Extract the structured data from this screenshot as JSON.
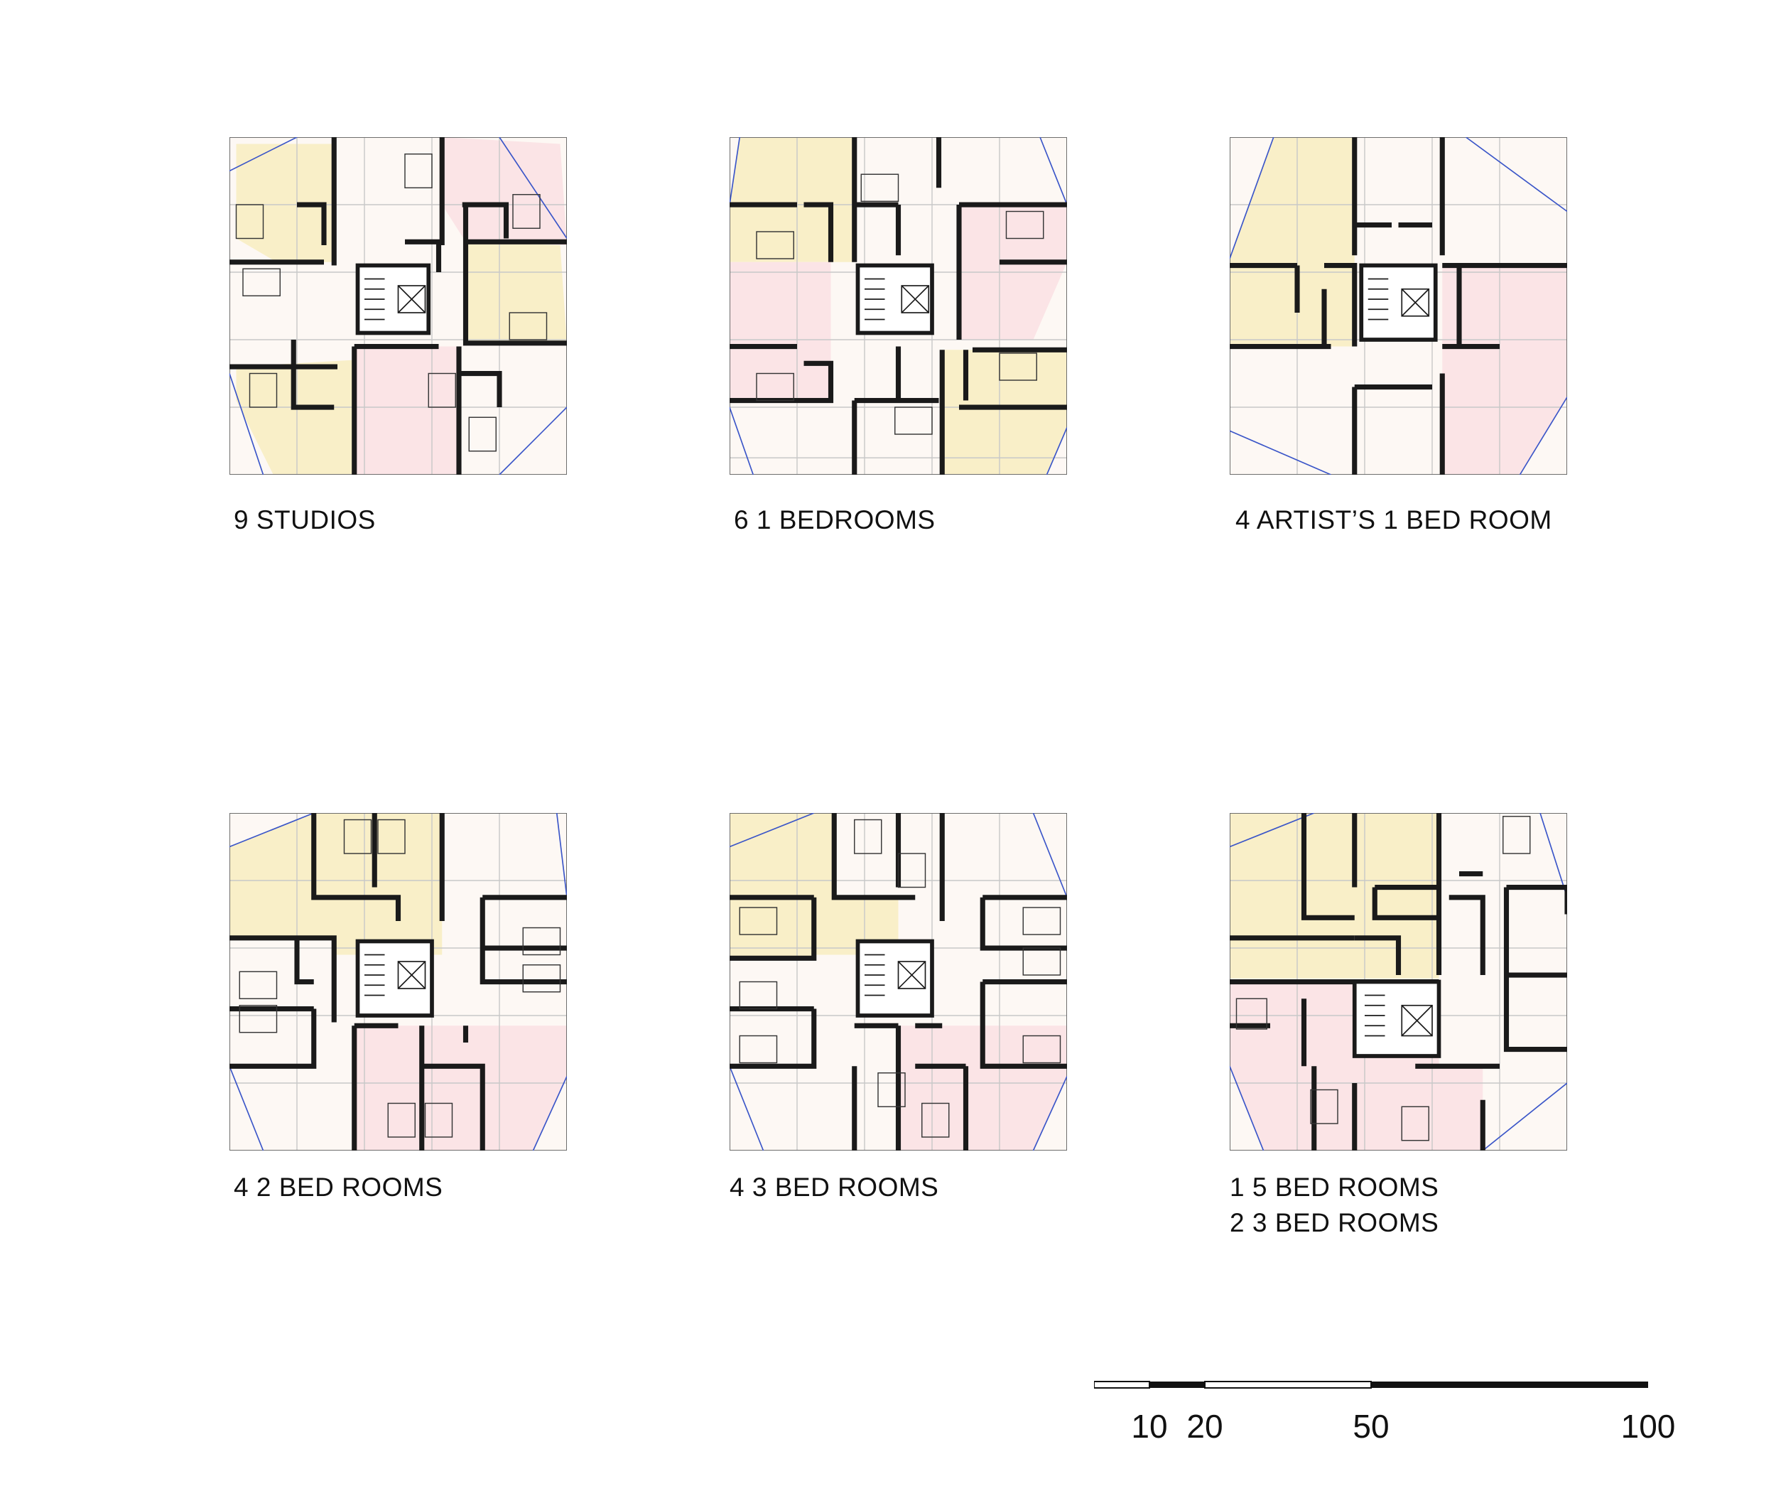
{
  "plans": [
    {
      "id": "p1",
      "caption": [
        "9 STUDIOS"
      ]
    },
    {
      "id": "p2",
      "caption": [
        "6 1 BEDROOMS"
      ]
    },
    {
      "id": "p3",
      "caption": [
        "4 ARTIST’S 1 BED ROOM"
      ]
    },
    {
      "id": "p4",
      "caption": [
        "4 2 BED ROOMS"
      ]
    },
    {
      "id": "p5",
      "caption": [
        "4 3 BED ROOMS"
      ]
    },
    {
      "id": "p6",
      "caption": [
        "1 5 BED ROOMS",
        "2 3 BED ROOMS"
      ]
    }
  ],
  "scale_bar": {
    "ticks": [
      "10",
      "20",
      "50",
      "100"
    ]
  },
  "colors": {
    "yellow": "#f9efc8",
    "pink": "#fbe4e6",
    "cream": "#fdf8f4",
    "blue": "#3a55c8",
    "wall": "#1a1a1a",
    "grid": "#c8c8c8"
  }
}
